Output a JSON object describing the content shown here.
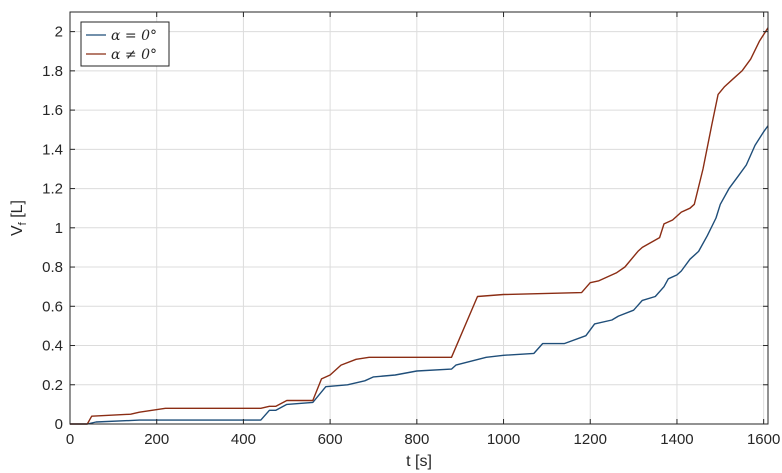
{
  "chart_data": {
    "type": "line",
    "title": "",
    "xlabel": "t [s]",
    "ylabel_main": "V",
    "ylabel_sub": "f",
    "ylabel_unit": " [L]",
    "xlim": [
      0,
      1610
    ],
    "ylim": [
      0,
      2.1
    ],
    "xticks": [
      0,
      200,
      400,
      600,
      800,
      1000,
      1200,
      1400,
      1600
    ],
    "yticks": [
      0,
      0.2,
      0.4,
      0.6,
      0.8,
      1,
      1.2,
      1.4,
      1.6,
      1.8,
      2
    ],
    "xtick_labels": [
      "0",
      "200",
      "400",
      "600",
      "800",
      "1000",
      "1200",
      "1400",
      "1600"
    ],
    "ytick_labels": [
      "0",
      "0.2",
      "0.4",
      "0.6",
      "0.8",
      "1",
      "1.2",
      "1.4",
      "1.6",
      "1.8",
      "2"
    ],
    "grid": true,
    "legend_position": "top-left",
    "series": [
      {
        "name": "α = 0°",
        "color": "#1f4e79",
        "x": [
          0,
          40,
          60,
          160,
          440,
          460,
          475,
          500,
          560,
          590,
          640,
          680,
          700,
          750,
          800,
          880,
          890,
          960,
          1000,
          1070,
          1090,
          1140,
          1190,
          1210,
          1250,
          1265,
          1300,
          1320,
          1350,
          1370,
          1380,
          1400,
          1410,
          1430,
          1450,
          1470,
          1490,
          1500,
          1520,
          1540,
          1560,
          1580,
          1600,
          1610
        ],
        "y": [
          0,
          0,
          0.01,
          0.02,
          0.02,
          0.07,
          0.07,
          0.1,
          0.11,
          0.19,
          0.2,
          0.22,
          0.24,
          0.25,
          0.27,
          0.28,
          0.3,
          0.34,
          0.35,
          0.36,
          0.41,
          0.41,
          0.45,
          0.51,
          0.53,
          0.55,
          0.58,
          0.63,
          0.65,
          0.7,
          0.74,
          0.76,
          0.78,
          0.84,
          0.88,
          0.96,
          1.05,
          1.12,
          1.2,
          1.26,
          1.32,
          1.42,
          1.49,
          1.52
        ]
      },
      {
        "name": "α ≠ 0°",
        "color": "#8b2d14",
        "x": [
          0,
          40,
          50,
          140,
          160,
          220,
          440,
          460,
          475,
          500,
          560,
          580,
          600,
          625,
          660,
          690,
          880,
          940,
          1000,
          1180,
          1200,
          1220,
          1260,
          1280,
          1310,
          1320,
          1360,
          1370,
          1390,
          1410,
          1430,
          1440,
          1460,
          1480,
          1495,
          1510,
          1530,
          1550,
          1570,
          1590,
          1610
        ],
        "y": [
          0,
          0,
          0.04,
          0.05,
          0.06,
          0.08,
          0.08,
          0.09,
          0.09,
          0.12,
          0.12,
          0.23,
          0.25,
          0.3,
          0.33,
          0.34,
          0.34,
          0.65,
          0.66,
          0.67,
          0.72,
          0.73,
          0.77,
          0.8,
          0.88,
          0.9,
          0.95,
          1.02,
          1.04,
          1.08,
          1.1,
          1.12,
          1.3,
          1.52,
          1.68,
          1.72,
          1.76,
          1.8,
          1.86,
          1.95,
          2.02
        ]
      }
    ]
  }
}
